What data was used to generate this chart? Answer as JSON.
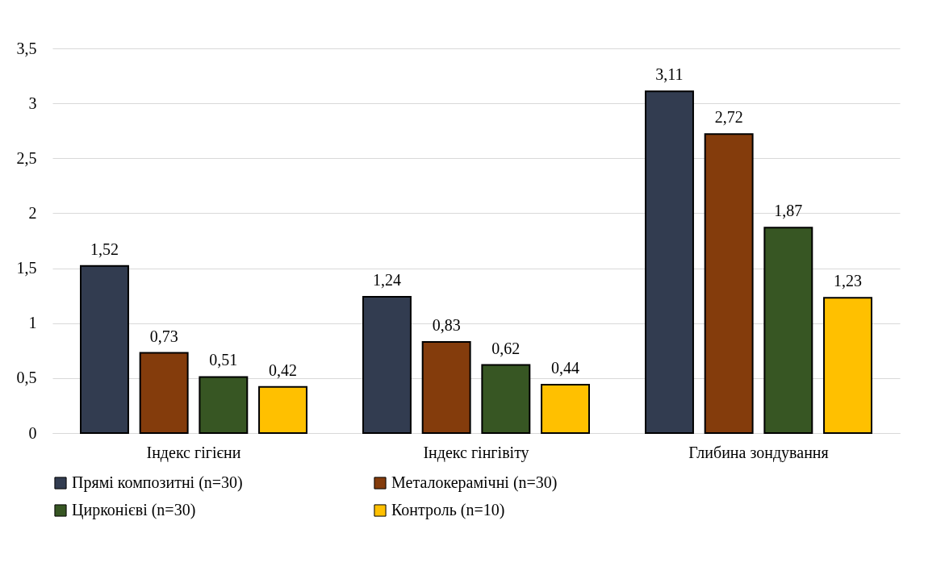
{
  "chart_data": {
    "type": "bar",
    "categories": [
      "Індекс гігієни",
      "Індекс гінгівіту",
      "Глибина зондування"
    ],
    "series": [
      {
        "name": "Прямі композитні (n=30)",
        "color": "#323c50",
        "values": [
          1.52,
          1.24,
          3.11
        ],
        "value_labels": [
          "1,52",
          "1,24",
          "3,11"
        ]
      },
      {
        "name": "Металокерамічні  (n=30)",
        "color": "#843c0c",
        "values": [
          0.73,
          0.83,
          2.72
        ],
        "value_labels": [
          "0,73",
          "0,83",
          "2,72"
        ]
      },
      {
        "name": "Цирконієві (n=30)",
        "color": "#375623",
        "values": [
          0.51,
          0.62,
          1.87
        ],
        "value_labels": [
          "0,51",
          "0,62",
          "1,87"
        ]
      },
      {
        "name": "Контроль (n=10)",
        "color": "#ffc000",
        "values": [
          0.42,
          0.44,
          1.23
        ],
        "value_labels": [
          "0,42",
          "0,44",
          "1,23"
        ]
      }
    ],
    "ylim": [
      0,
      3.5
    ],
    "yticks": [
      0,
      {
        "value": 0.5,
        "label": "0,5"
      },
      1,
      {
        "value": 1.5,
        "label": "1,5"
      },
      2,
      {
        "value": 2.5,
        "label": "2,5"
      },
      3,
      {
        "value": 3.5,
        "label": "3,5"
      }
    ],
    "grid": "y",
    "legend": "bottom"
  }
}
